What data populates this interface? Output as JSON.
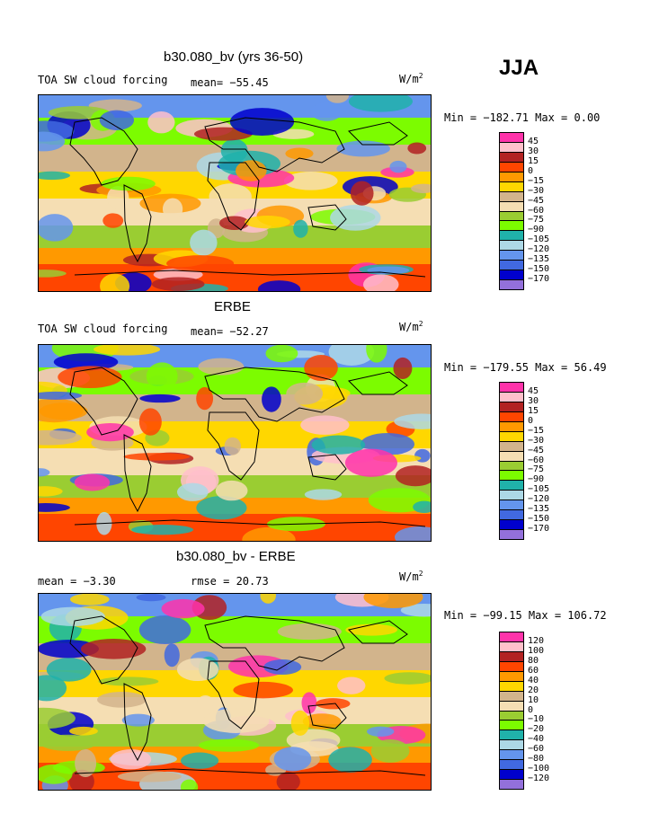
{
  "season": "JJA",
  "chart_data": [
    {
      "type": "heatmap",
      "title": "b30.080_bv (yrs 36-50)",
      "left_label": "TOA SW cloud forcing",
      "mean_label": "mean= −55.45",
      "units": "W/m",
      "units_exp": "2",
      "minmax": "Min = −182.71 Max =    0.00",
      "levels": [
        "45",
        "30",
        "15",
        "0",
        "−15",
        "−30",
        "−45",
        "−60",
        "−75",
        "−90",
        "−105",
        "−120",
        "−135",
        "−150",
        "−170"
      ],
      "colors": [
        "#ff33aa",
        "#ffc0cb",
        "#b22222",
        "#ff4500",
        "#ff9900",
        "#ffd700",
        "#d2b48c",
        "#f5deb3",
        "#9acd32",
        "#7cfc00",
        "#20b2aa",
        "#add8e6",
        "#6495ed",
        "#4169e1",
        "#0000cd",
        "#9370db"
      ]
    },
    {
      "type": "heatmap",
      "title": "ERBE",
      "left_label": "TOA SW cloud forcing",
      "mean_label": "mean= −52.27",
      "units": "W/m",
      "units_exp": "2",
      "minmax": "Min = −179.55 Max =   56.49",
      "levels": [
        "45",
        "30",
        "15",
        "0",
        "−15",
        "−30",
        "−45",
        "−60",
        "−75",
        "−90",
        "−105",
        "−120",
        "−135",
        "−150",
        "−170"
      ],
      "colors": [
        "#ff33aa",
        "#ffc0cb",
        "#b22222",
        "#ff4500",
        "#ff9900",
        "#ffd700",
        "#d2b48c",
        "#f5deb3",
        "#9acd32",
        "#7cfc00",
        "#20b2aa",
        "#add8e6",
        "#6495ed",
        "#4169e1",
        "#0000cd",
        "#9370db"
      ]
    },
    {
      "type": "heatmap",
      "title": "b30.080_bv - ERBE",
      "left_label": "mean =   −3.30",
      "mean_label": "rmse =  20.73",
      "units": "W/m",
      "units_exp": "2",
      "minmax": "Min = −99.15 Max = 106.72",
      "levels": [
        "120",
        "100",
        "80",
        "60",
        "40",
        "20",
        "10",
        "0",
        "−10",
        "−20",
        "−40",
        "−60",
        "−80",
        "−100",
        "−120"
      ],
      "colors": [
        "#ff33aa",
        "#ffc0cb",
        "#b22222",
        "#ff4500",
        "#ff9900",
        "#ffd700",
        "#d2b48c",
        "#f5deb3",
        "#9acd32",
        "#7cfc00",
        "#20b2aa",
        "#add8e6",
        "#6495ed",
        "#4169e1",
        "#0000cd",
        "#9370db"
      ]
    }
  ]
}
